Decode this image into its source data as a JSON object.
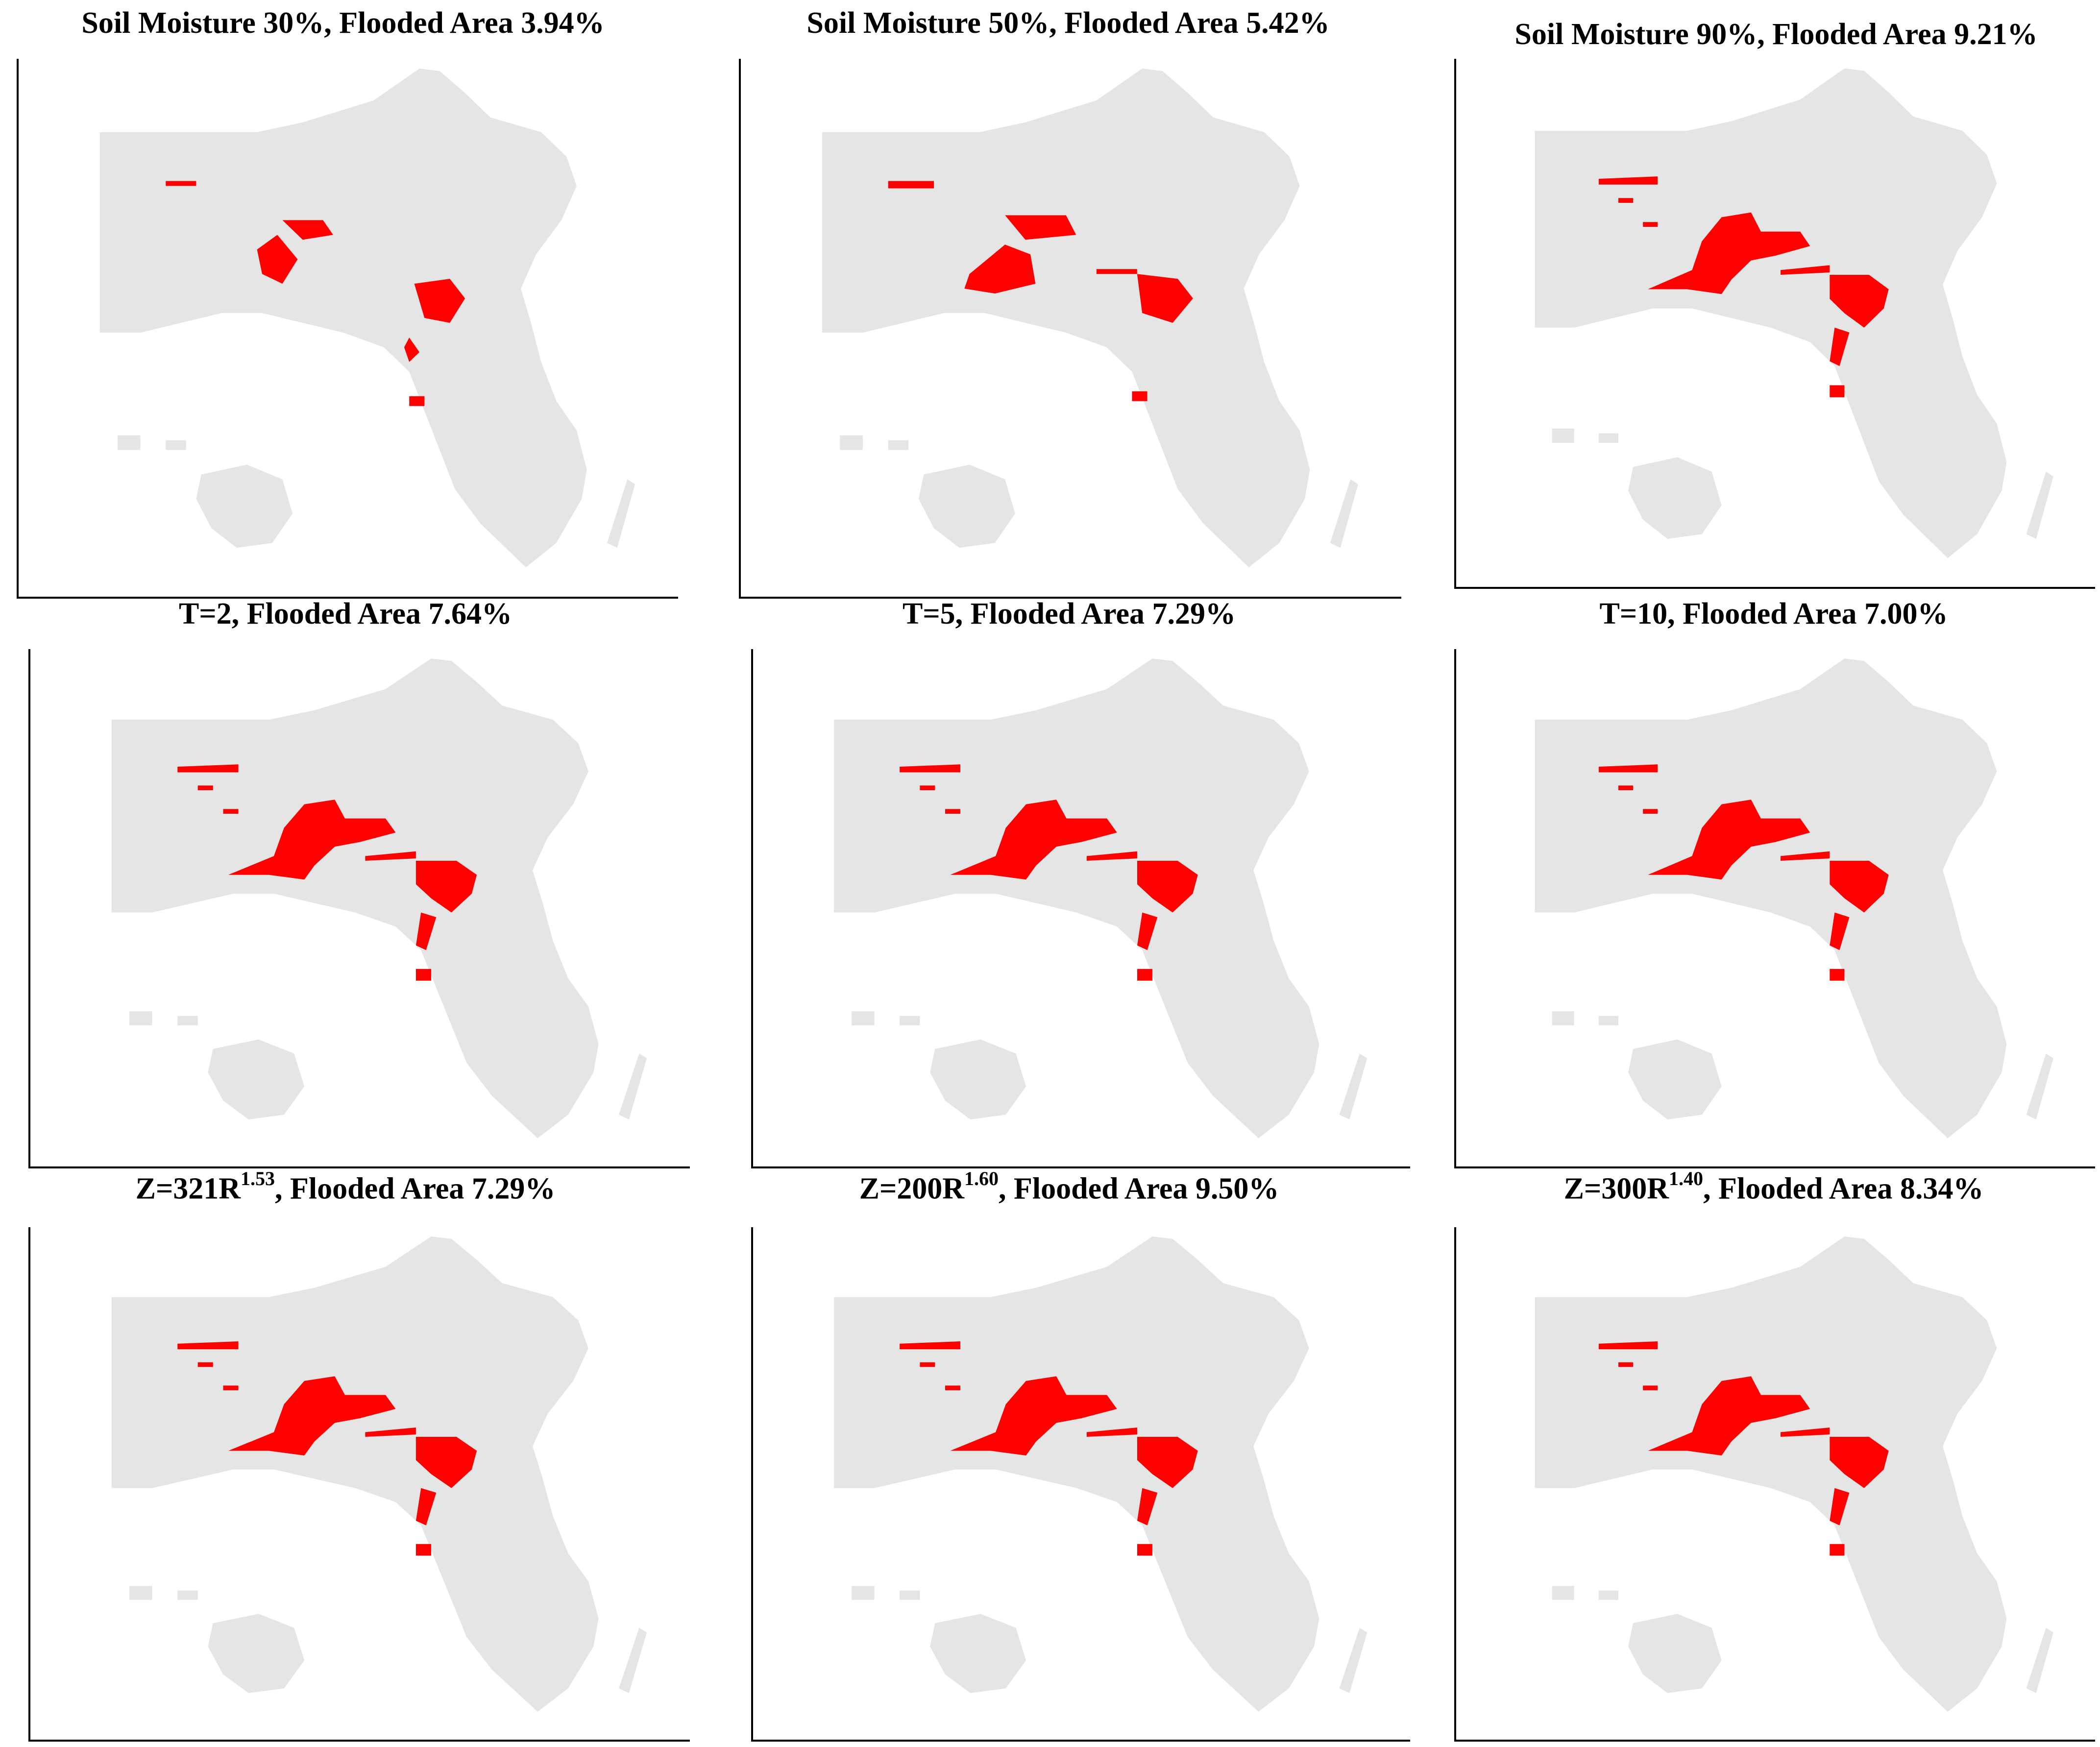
{
  "colors": {
    "land": "#e5e5e5",
    "flooded": "#ff0000",
    "axis": "#000000"
  },
  "panels": [
    {
      "id": "sm30",
      "title": {
        "main": "Soil Moisture 30%, Flooded Area 3.94%"
      },
      "flood_level": 1
    },
    {
      "id": "sm50",
      "title": {
        "main": "Soil Moisture 50%, Flooded Area 5.42%"
      },
      "flood_level": 2
    },
    {
      "id": "sm90",
      "title": {
        "main": "Soil Moisture 90%, Flooded Area 9.21%"
      },
      "flood_level": 3
    },
    {
      "id": "t2",
      "title": {
        "main": "T=2, Flooded Area 7.64%"
      },
      "flood_level": 3
    },
    {
      "id": "t5",
      "title": {
        "main": "T=5, Flooded Area 7.29%"
      },
      "flood_level": 3
    },
    {
      "id": "t10",
      "title": {
        "main": "T=10, Flooded Area 7.00%"
      },
      "flood_level": 3
    },
    {
      "id": "z321",
      "title": {
        "pre": "Z=321R",
        "sup": "1.53",
        "post": ", Flooded Area 7.29%"
      },
      "flood_level": 3
    },
    {
      "id": "z200",
      "title": {
        "pre": "Z=200R",
        "sup": "1.60",
        "post": ", Flooded Area 9.50%"
      },
      "flood_level": 3
    },
    {
      "id": "z300",
      "title": {
        "pre": "Z=300R",
        "sup": "1.40",
        "post": ", Flooded Area 8.34%"
      },
      "flood_level": 3
    }
  ]
}
